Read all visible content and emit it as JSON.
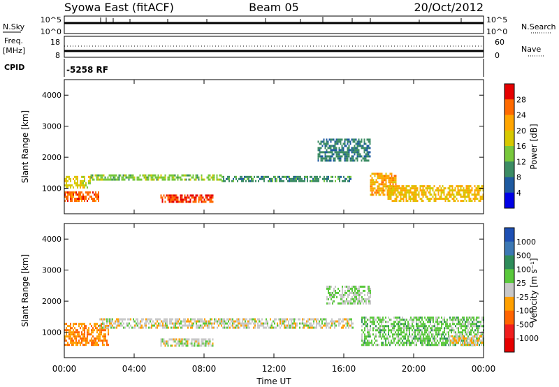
{
  "header": {
    "title_left": "Syowa East (fitACF)",
    "title_center": "Beam 05",
    "title_right": "20/Oct/2012"
  },
  "status_panel": {
    "nsky_label": "N.Sky",
    "nsky_ticks": [
      "10^5",
      "10^0"
    ],
    "nsearch_label": "N.Search",
    "nsearch_ticks": [
      "10^5",
      "10^0"
    ],
    "freq_label": "Freq.",
    "freq_unit": "[MHz]",
    "freq_ticks": [
      "18",
      "8"
    ],
    "nave_label": "Nave",
    "nave_ticks": [
      "60",
      "0"
    ],
    "cpid_label": "CPID",
    "cpid_value": "-5258 RF"
  },
  "power_colorbar": {
    "label": "Power [dB]",
    "ticks": [
      "28",
      "24",
      "20",
      "16",
      "12",
      "8",
      "4"
    ],
    "colors": [
      "#e60000",
      "#ff6a00",
      "#ffa500",
      "#d7c800",
      "#78c83c",
      "#3c8c64",
      "#1e5aa0",
      "#0000e6"
    ]
  },
  "velocity_colorbar": {
    "label": "Velocity [m s⁻¹]",
    "ticks": [
      "1000",
      "500",
      "100",
      "25",
      "-25",
      "-100",
      "-500",
      "-1000"
    ],
    "colors": [
      "#1e50b4",
      "#3c78b4",
      "#2e8c5a",
      "#5ac83c",
      "#c8c8c8",
      "#ffa000",
      "#ff6400",
      "#f01e1e",
      "#e60000"
    ]
  },
  "time_axis": {
    "label": "Time UT",
    "ticks": [
      "00:00",
      "04:00",
      "08:00",
      "12:00",
      "16:00",
      "20:00",
      "00:00"
    ]
  },
  "chart_data": [
    {
      "type": "heatmap",
      "title": "Power",
      "ylabel": "Slant Range [km]",
      "xlabel": "Time UT",
      "xlim": [
        0,
        24
      ],
      "ylim": [
        180,
        4500
      ],
      "y_ticks": [
        1000,
        2000,
        3000,
        4000
      ],
      "x_ticks_hours": [
        0,
        4,
        8,
        12,
        16,
        20,
        24
      ],
      "colorbar_range": [
        0,
        32
      ],
      "regions": [
        {
          "t": [
            0.0,
            2.0
          ],
          "r": [
            600,
            900
          ],
          "value": 26
        },
        {
          "t": [
            0.0,
            1.5
          ],
          "r": [
            1000,
            1400
          ],
          "value": 18
        },
        {
          "t": [
            1.5,
            9.0
          ],
          "r": [
            1250,
            1450
          ],
          "value": 14
        },
        {
          "t": [
            5.5,
            8.5
          ],
          "r": [
            550,
            800
          ],
          "value": 28
        },
        {
          "t": [
            9.0,
            16.5
          ],
          "r": [
            1200,
            1400
          ],
          "value": 10
        },
        {
          "t": [
            14.5,
            17.5
          ],
          "r": [
            1900,
            2600
          ],
          "value": 9
        },
        {
          "t": [
            17.5,
            19.0
          ],
          "r": [
            800,
            1500
          ],
          "value": 22
        },
        {
          "t": [
            18.5,
            24.0
          ],
          "r": [
            600,
            1100
          ],
          "value": 20
        }
      ]
    },
    {
      "type": "heatmap",
      "title": "Velocity",
      "ylabel": "Slant Range [km]",
      "xlabel": "Time UT",
      "xlim": [
        0,
        24
      ],
      "ylim": [
        180,
        4500
      ],
      "y_ticks": [
        1000,
        2000,
        3000,
        4000
      ],
      "x_ticks_hours": [
        0,
        4,
        8,
        12,
        16,
        20,
        24
      ],
      "colorbar_range": [
        -1000,
        1000
      ],
      "regions": [
        {
          "t": [
            0.0,
            2.5
          ],
          "r": [
            600,
            1300
          ],
          "value": -300
        },
        {
          "t": [
            2.0,
            16.5
          ],
          "r": [
            1150,
            1450
          ],
          "value": 0
        },
        {
          "t": [
            5.5,
            8.5
          ],
          "r": [
            550,
            800
          ],
          "value": 0
        },
        {
          "t": [
            15.0,
            17.5
          ],
          "r": [
            1900,
            2500
          ],
          "value": 100
        },
        {
          "t": [
            17.0,
            24.0
          ],
          "r": [
            600,
            1500
          ],
          "value": 200
        },
        {
          "t": [
            22.0,
            24.0
          ],
          "r": [
            600,
            900
          ],
          "value": -100
        }
      ]
    }
  ]
}
